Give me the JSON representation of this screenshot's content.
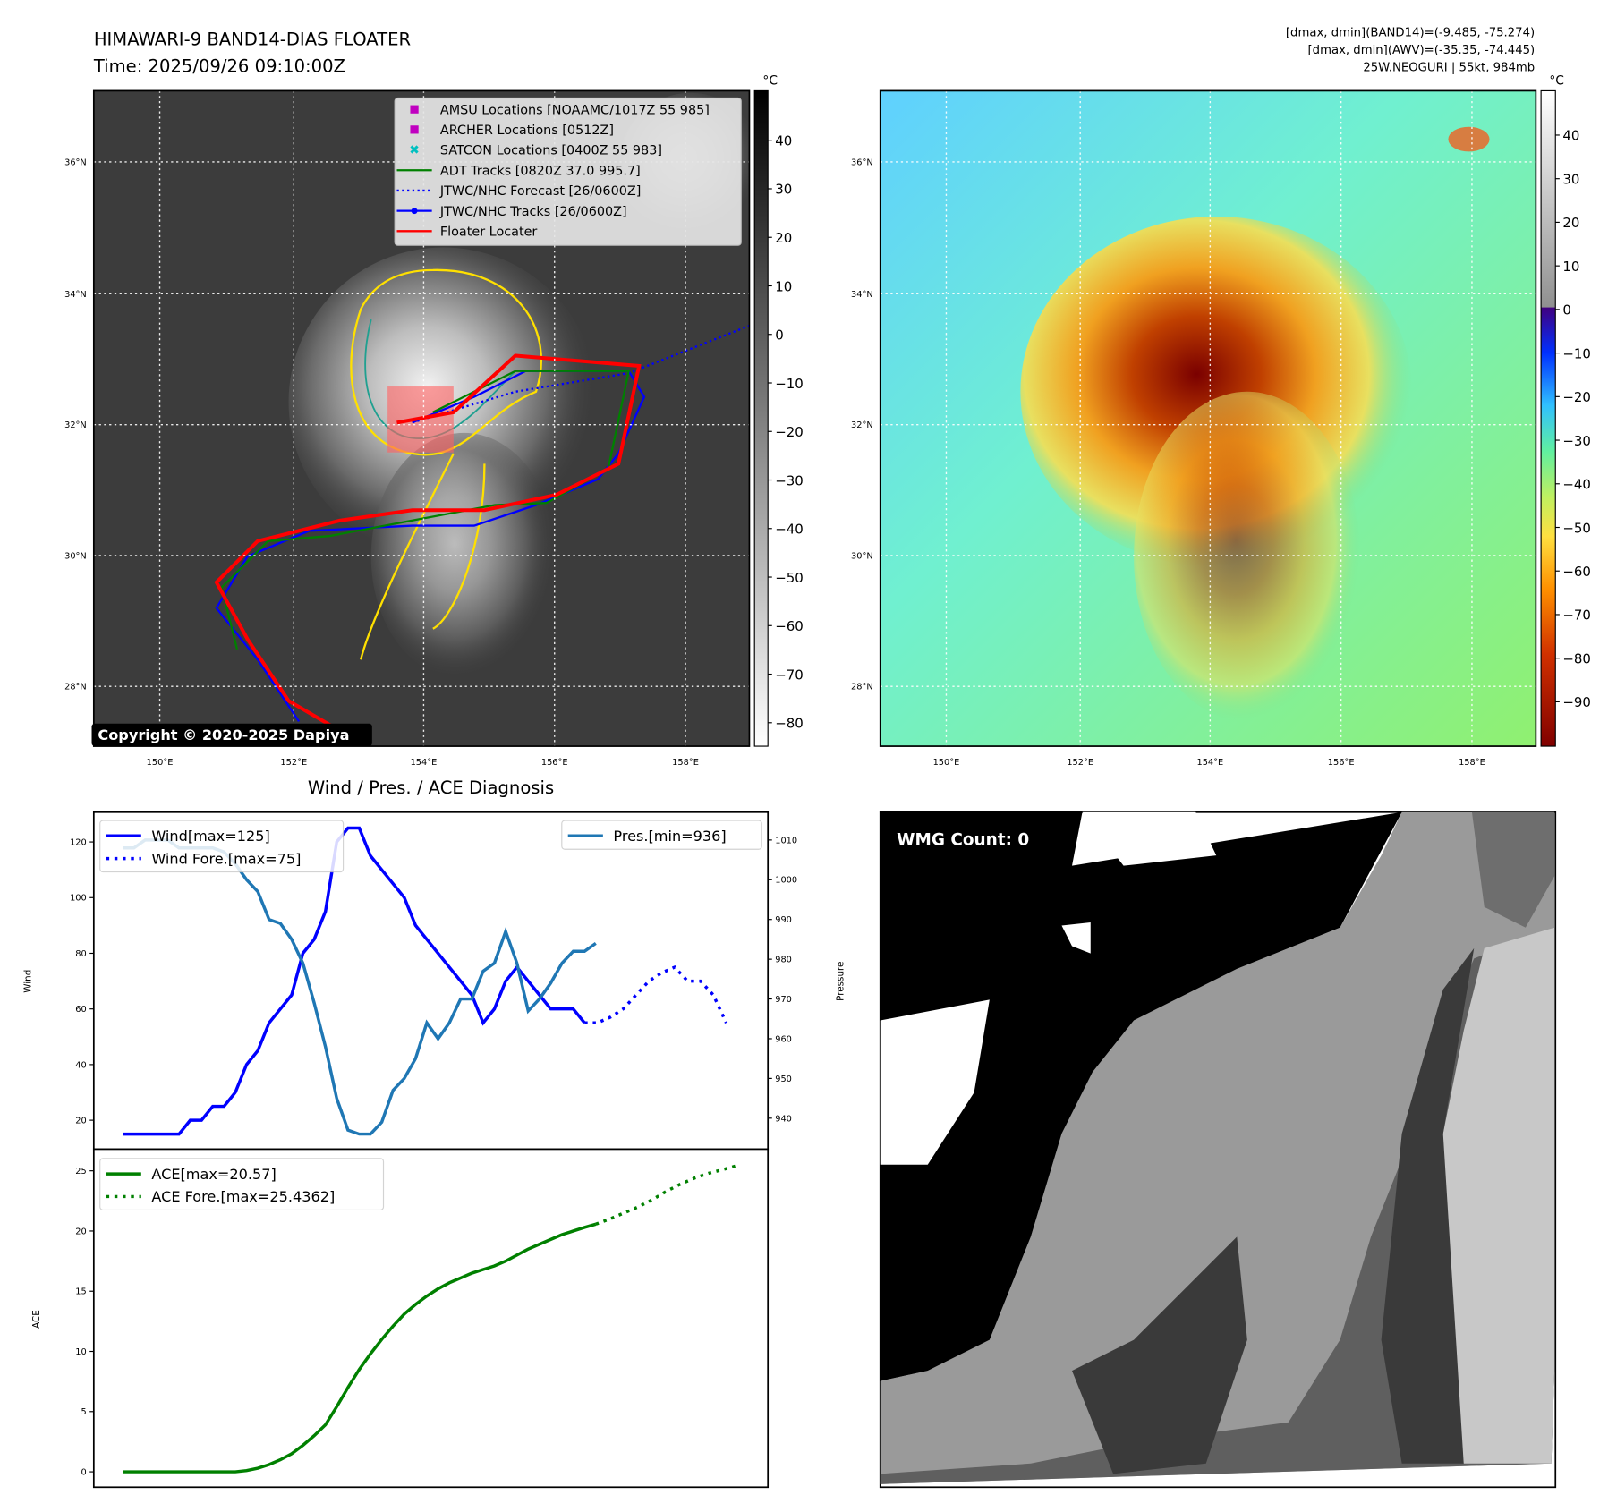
{
  "title": {
    "line1": "HIMAWARI-9 BAND14-DIAS FLOATER",
    "line2": "Time: 2025/09/26 09:10:00Z"
  },
  "info": {
    "line1": "[dmax, dmin](BAND14)=(-9.485, -75.274)",
    "line2": "[dmax, dmin](AWV)=(-35.35, -74.445)",
    "line3": "25W.NEOGURI | 55kt, 984mb"
  },
  "map": {
    "lat_labels": [
      "36°N",
      "34°N",
      "32°N",
      "30°N",
      "28°N"
    ],
    "lon_labels": [
      "150°E",
      "152°E",
      "154°E",
      "156°E",
      "158°E"
    ],
    "copyright": "Copyright © 2020-2025 Dapiya",
    "legend": [
      {
        "label": "AMSU Locations [NOAAMC/1017Z 55 985]",
        "color": "#c000c0",
        "marker": "square"
      },
      {
        "label": "ARCHER Locations [0512Z]",
        "color": "#c000c0",
        "marker": "square"
      },
      {
        "label": "SATCON Locations [0400Z 55 983]",
        "color": "#00c0c0",
        "marker": "x"
      },
      {
        "label": "ADT Tracks [0820Z 37.0 995.7]",
        "color": "#008000",
        "marker": "line"
      },
      {
        "label": "JTWC/NHC Forecast [26/0600Z]",
        "color": "#0000ff",
        "marker": "dotted"
      },
      {
        "label": "JTWC/NHC Tracks [26/0600Z]",
        "color": "#0000ff",
        "marker": "line-dot"
      },
      {
        "label": "Floater Locater",
        "color": "#ff0000",
        "marker": "line"
      }
    ]
  },
  "colorbar_left": {
    "unit": "°C",
    "ticks": [
      "40",
      "30",
      "20",
      "10",
      "0",
      "−10",
      "−20",
      "−30",
      "−40",
      "−50",
      "−60",
      "−70",
      "−80"
    ]
  },
  "colorbar_right": {
    "unit": "°C",
    "ticks": [
      "40",
      "30",
      "20",
      "10",
      "0",
      "−10",
      "−20",
      "−30",
      "−40",
      "−50",
      "−60",
      "−70",
      "−80",
      "−90"
    ]
  },
  "wmg": {
    "label": "WMG Count: 0"
  },
  "chart_data": [
    {
      "type": "line",
      "title": "Wind / Pres. / ACE Diagnosis",
      "ylabel": "Wind",
      "y2label": "Pressure",
      "ylim": [
        9.6,
        130.7
      ],
      "y2lim": [
        932.2,
        1017
      ],
      "yticks": [
        20,
        40,
        60,
        80,
        100,
        120
      ],
      "y2ticks": [
        940,
        950,
        960,
        970,
        980,
        990,
        1000,
        1010
      ],
      "series": [
        {
          "name": "Wind[max=125]",
          "color": "#0000ff",
          "style": "solid",
          "values": [
            15,
            15,
            15,
            15,
            15,
            15,
            20,
            20,
            25,
            25,
            30,
            40,
            45,
            55,
            60,
            65,
            80,
            85,
            95,
            120,
            125,
            125,
            115,
            110,
            105,
            100,
            90,
            85,
            80,
            75,
            70,
            65,
            55,
            60,
            70,
            75,
            70,
            65,
            60,
            60,
            60,
            55
          ]
        },
        {
          "name": "Wind Fore.[max=75]",
          "color": "#0000ff",
          "style": "dotted",
          "start": 41,
          "values": [
            55,
            55,
            57,
            60,
            65,
            70,
            73,
            75,
            70,
            70,
            65,
            55
          ]
        },
        {
          "name": "Pres.[min=936]",
          "color": "#1f77b4",
          "style": "solid",
          "axis": "y2",
          "values": [
            1008,
            1008,
            1010,
            1010,
            1010,
            1008,
            1008,
            1008,
            1008,
            1007,
            1004,
            1000,
            997,
            990,
            989,
            985,
            979,
            969,
            958,
            945,
            937,
            936,
            936,
            939,
            947,
            950,
            955,
            964,
            960,
            964,
            970,
            970,
            977,
            979,
            987,
            979,
            967,
            970,
            974,
            979,
            982,
            982,
            984
          ]
        }
      ]
    },
    {
      "type": "line",
      "ylabel": "ACE",
      "ylim": [
        -1.28,
        26.8
      ],
      "yticks": [
        0,
        5,
        10,
        15,
        20,
        25
      ],
      "series": [
        {
          "name": "ACE[max=20.57]",
          "color": "#008000",
          "style": "solid",
          "values": [
            0,
            0,
            0,
            0,
            0,
            0,
            0,
            0,
            0,
            0,
            0,
            0.1,
            0.3,
            0.6,
            1.0,
            1.5,
            2.2,
            3.0,
            3.9,
            5.4,
            7.0,
            8.5,
            9.8,
            11.0,
            12.1,
            13.1,
            13.9,
            14.6,
            15.2,
            15.7,
            16.1,
            16.5,
            16.8,
            17.1,
            17.5,
            18.0,
            18.5,
            18.9,
            19.3,
            19.7,
            20.0,
            20.3,
            20.57
          ]
        },
        {
          "name": "ACE Fore.[max=25.4362]",
          "color": "#008000",
          "style": "dotted",
          "start": 42,
          "values": [
            20.57,
            21.0,
            21.5,
            22.0,
            22.6,
            23.3,
            23.9,
            24.4,
            24.8,
            25.1,
            25.4362
          ]
        }
      ]
    }
  ]
}
